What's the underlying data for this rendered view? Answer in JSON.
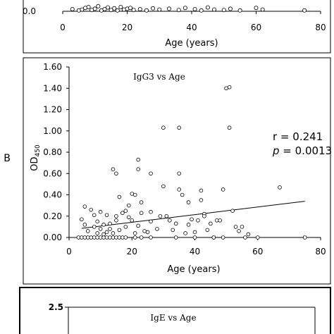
{
  "chart_data": [
    {
      "panel": "top",
      "type": "scatter",
      "title": "",
      "xlabel": "Age (years)",
      "ylabel": "",
      "xlim": [
        0,
        80
      ],
      "x_ticks": [
        "0",
        "20",
        "40",
        "60",
        "80"
      ],
      "y_ticks": [
        "0.0"
      ],
      "points": [
        [
          3,
          0.05
        ],
        [
          5,
          0.02
        ],
        [
          6,
          0.04
        ],
        [
          7,
          0.08
        ],
        [
          8,
          0.1
        ],
        [
          9,
          0.03
        ],
        [
          10,
          0.06
        ],
        [
          11,
          0.12
        ],
        [
          12,
          0.02
        ],
        [
          13,
          0.05
        ],
        [
          14,
          0.09
        ],
        [
          15,
          0.03
        ],
        [
          16,
          0.07
        ],
        [
          17,
          0.02
        ],
        [
          18,
          0.1
        ],
        [
          19,
          0.04
        ],
        [
          20,
          0.06
        ],
        [
          21,
          0.08
        ],
        [
          22,
          0.03
        ],
        [
          24,
          0.05
        ],
        [
          26,
          0.02
        ],
        [
          28,
          0.07
        ],
        [
          30,
          0.04
        ],
        [
          33,
          0.06
        ],
        [
          36,
          0.03
        ],
        [
          38,
          0.08
        ],
        [
          41,
          0.05
        ],
        [
          43,
          0.02
        ],
        [
          45,
          0.09
        ],
        [
          47,
          0.04
        ],
        [
          50,
          0.03
        ],
        [
          52,
          0.06
        ],
        [
          55,
          0.02
        ],
        [
          60,
          0.08
        ],
        [
          62,
          0.04
        ],
        [
          75,
          0.02
        ]
      ]
    },
    {
      "panel": "B",
      "panel_label": "B",
      "type": "scatter",
      "title": "IgG3 vs Age",
      "xlabel": "Age (years)",
      "ylabel": "OD",
      "ylabel_sub": "450",
      "xlim": [
        0,
        80
      ],
      "ylim": [
        0,
        1.6
      ],
      "x_ticks": [
        "0",
        "20",
        "40",
        "60",
        "80"
      ],
      "y_ticks": [
        "0.00",
        "0.20",
        "0.40",
        "0.60",
        "0.80",
        "1.00",
        "1.20",
        "1.40",
        "1.60"
      ],
      "annotation_r": "r = 0.241",
      "annotation_p_label": "p",
      "annotation_p_value": " = 0.0013",
      "trendline": {
        "x": [
          4,
          75
        ],
        "y": [
          0.085,
          0.34
        ]
      },
      "points": [
        [
          3,
          0.0
        ],
        [
          4,
          0.0
        ],
        [
          5,
          0.0
        ],
        [
          6,
          0.0
        ],
        [
          7,
          0.0
        ],
        [
          8,
          0.0
        ],
        [
          9,
          0.0
        ],
        [
          10,
          0.0
        ],
        [
          11,
          0.0
        ],
        [
          12,
          0.0
        ],
        [
          13,
          0.0
        ],
        [
          14,
          0.0
        ],
        [
          15,
          0.0
        ],
        [
          16,
          0.0
        ],
        [
          17,
          0.0
        ],
        [
          18,
          0.0
        ],
        [
          21,
          0.0
        ],
        [
          23,
          0.0
        ],
        [
          26,
          0.0
        ],
        [
          34,
          0.0
        ],
        [
          40,
          0.0
        ],
        [
          46,
          0.0
        ],
        [
          49,
          0.0
        ],
        [
          56,
          0.0
        ],
        [
          60,
          0.0
        ],
        [
          75,
          0.0
        ],
        [
          4,
          0.17
        ],
        [
          5,
          0.12
        ],
        [
          5,
          0.29
        ],
        [
          6,
          0.06
        ],
        [
          7,
          0.26
        ],
        [
          8,
          0.1
        ],
        [
          8,
          0.21
        ],
        [
          9,
          0.04
        ],
        [
          9,
          0.15
        ],
        [
          10,
          0.24
        ],
        [
          10,
          0.08
        ],
        [
          11,
          0.12
        ],
        [
          11,
          0.03
        ],
        [
          12,
          0.21
        ],
        [
          12,
          0.05
        ],
        [
          13,
          0.13
        ],
        [
          13,
          0.08
        ],
        [
          14,
          0.64
        ],
        [
          14,
          0.04
        ],
        [
          15,
          0.2
        ],
        [
          15,
          0.16
        ],
        [
          15,
          0.6
        ],
        [
          16,
          0.38
        ],
        [
          16,
          0.07
        ],
        [
          17,
          0.23
        ],
        [
          18,
          0.25
        ],
        [
          18,
          0.1
        ],
        [
          19,
          0.19
        ],
        [
          19,
          0.3
        ],
        [
          20,
          0.41
        ],
        [
          20,
          0.16
        ],
        [
          21,
          0.04
        ],
        [
          21,
          0.4
        ],
        [
          22,
          0.73
        ],
        [
          22,
          0.64
        ],
        [
          22,
          0.11
        ],
        [
          23,
          0.23
        ],
        [
          23,
          0.33
        ],
        [
          24,
          0.06
        ],
        [
          25,
          0.05
        ],
        [
          26,
          0.24
        ],
        [
          26,
          0.6
        ],
        [
          26,
          0.15
        ],
        [
          28,
          0.08
        ],
        [
          29,
          0.2
        ],
        [
          30,
          0.48
        ],
        [
          30,
          1.03
        ],
        [
          31,
          0.2
        ],
        [
          32,
          0.16
        ],
        [
          33,
          0.07
        ],
        [
          34,
          0.13
        ],
        [
          35,
          0.45
        ],
        [
          35,
          0.6
        ],
        [
          35,
          1.03
        ],
        [
          36,
          0.4
        ],
        [
          37,
          0.04
        ],
        [
          38,
          0.33
        ],
        [
          38,
          0.12
        ],
        [
          39,
          0.17
        ],
        [
          40,
          0.05
        ],
        [
          41,
          0.16
        ],
        [
          42,
          0.35
        ],
        [
          42,
          0.44
        ],
        [
          43,
          0.22
        ],
        [
          43,
          0.2
        ],
        [
          44,
          0.07
        ],
        [
          45,
          0.13
        ],
        [
          46,
          0.0
        ],
        [
          47,
          0.16
        ],
        [
          48,
          0.16
        ],
        [
          49,
          0.45
        ],
        [
          50,
          1.4
        ],
        [
          51,
          1.41
        ],
        [
          51,
          1.03
        ],
        [
          52,
          0.25
        ],
        [
          53,
          0.1
        ],
        [
          54,
          0.06
        ],
        [
          55,
          0.1
        ],
        [
          57,
          0.03
        ],
        [
          67,
          0.47
        ]
      ]
    },
    {
      "panel": "bottom",
      "type": "scatter",
      "title": "IgE vs Age",
      "y_ticks": [
        "2.5"
      ],
      "points": []
    }
  ]
}
